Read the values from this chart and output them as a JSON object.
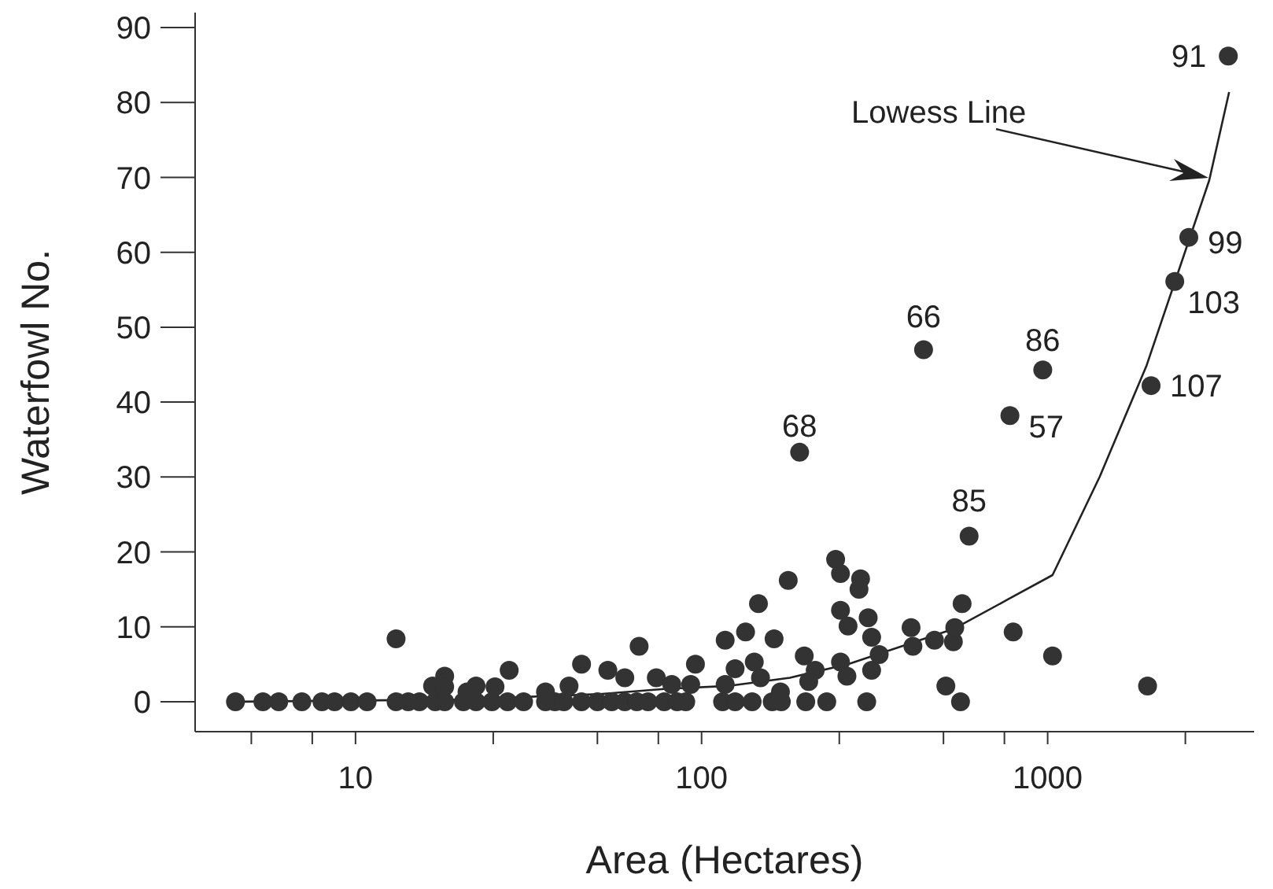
{
  "chart_data": {
    "type": "scatter",
    "xlabel": "Area (Hectares)",
    "ylabel": "Waterfowl No.",
    "log": "x",
    "grid": false,
    "legend": false,
    "marker": "circle",
    "xlim": [
      3.44,
      3950
    ],
    "xticks": [
      {
        "value": 5,
        "label": null
      },
      {
        "value": 7.5,
        "label": null
      },
      10,
      {
        "value": 25,
        "label": null
      },
      {
        "value": 50,
        "label": null
      },
      {
        "value": 75,
        "label": null
      },
      100,
      {
        "value": 250,
        "label": null
      },
      {
        "value": 500,
        "label": null
      },
      {
        "value": 750,
        "label": null
      },
      1000,
      {
        "value": 2500,
        "label": null
      }
    ],
    "ylim": [
      -4,
      92
    ],
    "yticks": [
      0,
      10,
      20,
      30,
      40,
      50,
      60,
      70,
      80,
      90
    ],
    "series": [
      {
        "color": "#333333",
        "x": [
          4.5,
          5.4,
          6.0,
          7.0,
          8.0,
          8.7,
          9.7,
          10.8,
          13.1,
          14.2,
          15.3,
          17.0,
          18.1,
          20.5,
          22.3,
          24.8,
          27.5,
          30.6,
          35.4,
          37.7,
          40,
          45,
          50,
          55,
          60,
          65,
          70,
          78,
          85,
          90,
          115,
          125,
          140,
          160,
          170,
          200,
          230,
          300,
          560,
          13.1,
          16.7,
          18.1,
          18.1,
          21,
          22.3,
          25.3,
          27.8,
          35.4,
          41.4,
          45,
          53.6,
          60,
          66,
          74,
          82,
          93,
          96,
          117,
          117,
          125,
          134,
          142,
          146,
          148,
          162,
          169,
          178,
          192,
          198,
          204,
          213,
          244,
          252,
          288,
          252,
          265,
          303,
          310,
          285,
          252,
          263,
          310,
          326,
          403,
          408,
          438,
          471,
          534,
          539,
          566,
          508,
          593,
          778,
          795,
          968,
          1033,
          1944,
          1990,
          2330,
          2558,
          3327
        ],
        "values": [
          0,
          0,
          0,
          0,
          0,
          0,
          0,
          0,
          0,
          0,
          0,
          0,
          0,
          0,
          0,
          0,
          0,
          0,
          0,
          0,
          0,
          0,
          0,
          0,
          0,
          0,
          0,
          0,
          0,
          0,
          0,
          0,
          0,
          0,
          0,
          0,
          0,
          0,
          0,
          8.4,
          2.1,
          3.4,
          2,
          1.3,
          2.1,
          2,
          4.2,
          1.3,
          2.1,
          5,
          4.2,
          3.2,
          7.4,
          3.2,
          2.3,
          2.3,
          5,
          8.2,
          2.3,
          4.4,
          9.3,
          5.3,
          13.1,
          3.2,
          8.4,
          1.3,
          16.2,
          33.3,
          6.1,
          2.7,
          4.2,
          19,
          17.1,
          16.4,
          12.2,
          10.1,
          11.2,
          8.6,
          15,
          5.3,
          3.4,
          4.2,
          6.3,
          9.9,
          7.4,
          47,
          8.2,
          8,
          9.9,
          13.1,
          2.1,
          22.1,
          38.2,
          9.3,
          44.3,
          6.1,
          2.1,
          42.2,
          56.1,
          62,
          86.2
        ]
      },
      {
        "type": "line",
        "color": "#222222",
        "marker": "none",
        "line_style": "solid",
        "x": [
          4.7,
          20,
          50,
          78,
          119,
          180,
          265,
          534,
          771,
          1033,
          1413,
          1932,
          2930,
          3345
        ],
        "values": [
          0,
          0.3,
          1,
          1.7,
          2.1,
          3.2,
          5,
          9.7,
          13.7,
          16.9,
          30,
          44.9,
          69.6,
          81.4
        ]
      }
    ],
    "annotations": [
      {
        "text": "91",
        "x": 3327,
        "y": 86.2
      },
      {
        "text": "99",
        "x": 2558,
        "y": 62
      },
      {
        "text": "103",
        "x": 2330,
        "y": 56.1
      },
      {
        "text": "107",
        "x": 1990,
        "y": 42.2
      },
      {
        "text": "57",
        "x": 778,
        "y": 38.2
      },
      {
        "text": "86",
        "x": 968,
        "y": 44.3
      },
      {
        "text": "66",
        "x": 438,
        "y": 47
      },
      {
        "text": "68",
        "x": 192,
        "y": 33.3
      },
      {
        "text": "85",
        "x": 593,
        "y": 22.1
      },
      "Lowess Line"
    ]
  }
}
